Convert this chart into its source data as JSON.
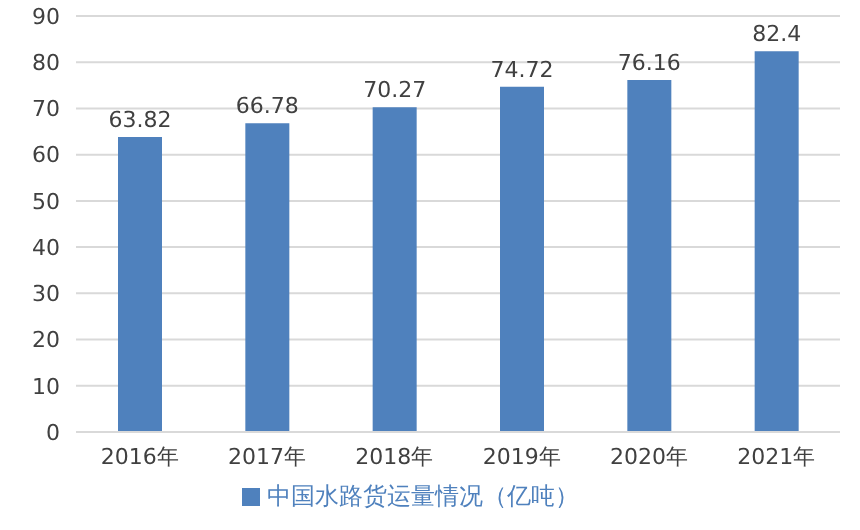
{
  "chart_data": {
    "type": "bar",
    "categories": [
      "2016年",
      "2017年",
      "2018年",
      "2019年",
      "2020年",
      "2021年"
    ],
    "series": [
      {
        "name": "中国水路货运量情况（亿吨）",
        "color": "#4f81bd",
        "values": [
          63.82,
          66.78,
          70.27,
          74.72,
          76.16,
          82.4
        ]
      }
    ],
    "ylim": [
      0,
      90
    ],
    "yticks": [
      0,
      10,
      20,
      30,
      40,
      50,
      60,
      70,
      80,
      90
    ],
    "grid": "y",
    "legend": "bottom",
    "data_labels": true
  }
}
